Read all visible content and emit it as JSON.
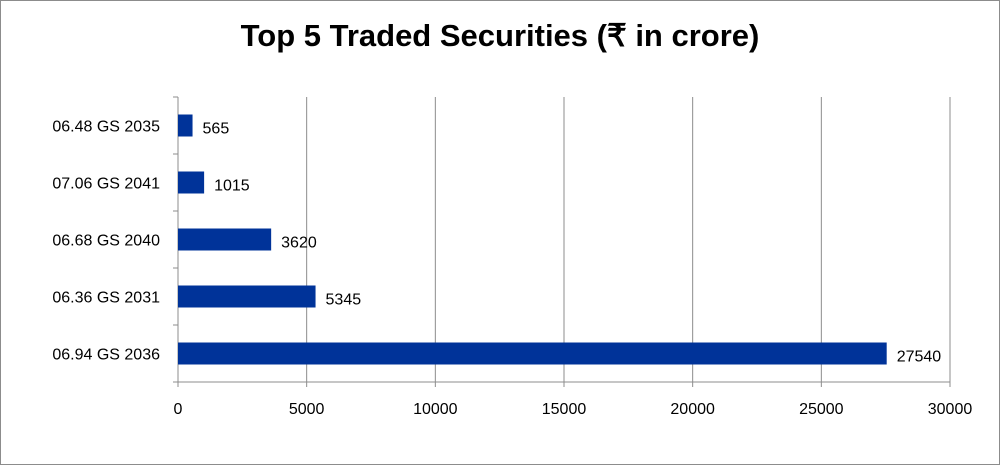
{
  "chart_data": {
    "type": "bar",
    "orientation": "horizontal",
    "title": "Top 5 Traded Securities (₹ in crore)",
    "categories": [
      "06.48 GS 2035",
      "07.06 GS 2041",
      "06.68 GS 2040",
      "06.36 GS 2031",
      "06.94 GS 2036"
    ],
    "values": [
      565,
      1015,
      3620,
      5345,
      27540
    ],
    "xlim": [
      0,
      30000
    ],
    "xticks": [
      0,
      5000,
      10000,
      15000,
      20000,
      25000,
      30000
    ],
    "grid": true,
    "legend": "none",
    "bar_color": "#003399"
  }
}
